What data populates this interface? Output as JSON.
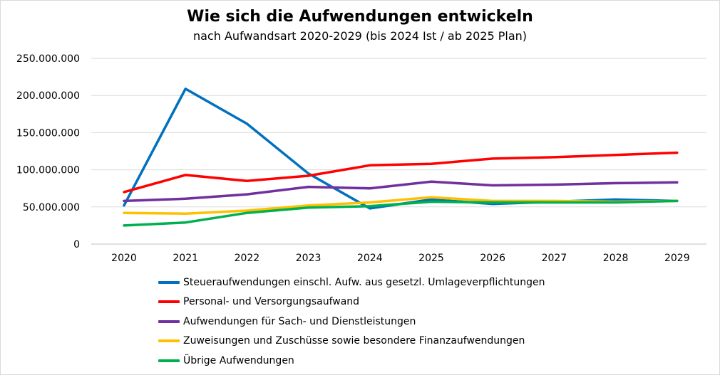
{
  "chart_data": {
    "type": "line",
    "title": "Wie sich die Aufwendungen entwickeln",
    "subtitle": "nach Aufwandsart 2020-2029 (bis 2024 Ist / ab 2025 Plan)",
    "x": [
      "2020",
      "2021",
      "2022",
      "2023",
      "2024",
      "2025",
      "2026",
      "2027",
      "2028",
      "2029"
    ],
    "ylim": [
      0,
      250000000
    ],
    "yticks": [
      0,
      50000000,
      100000000,
      150000000,
      200000000,
      250000000
    ],
    "ytick_labels": [
      "0",
      "50.000.000",
      "100.000.000",
      "150.000.000",
      "200.000.000",
      "250.000.000"
    ],
    "grid": true,
    "legend_position": "bottom",
    "series": [
      {
        "name": "Steueraufwendungen einschl. Aufw. aus gesetzl. Umlageverpflichtungen",
        "color": "#0070c0",
        "values": [
          52000000,
          209000000,
          162000000,
          95000000,
          48000000,
          60000000,
          54000000,
          57000000,
          60000000,
          58000000
        ]
      },
      {
        "name": "Personal- und Versorgungsaufwand",
        "color": "#ff0000",
        "values": [
          70000000,
          93000000,
          85000000,
          92000000,
          106000000,
          108000000,
          115000000,
          117000000,
          120000000,
          123000000
        ]
      },
      {
        "name": "Aufwendungen für Sach- und Dienstleistungen",
        "color": "#7030a0",
        "values": [
          58000000,
          61000000,
          67000000,
          77000000,
          75000000,
          84000000,
          79000000,
          80000000,
          82000000,
          83000000
        ]
      },
      {
        "name": "Zuweisungen und Zuschüsse sowie besondere Finanzaufwendungen",
        "color": "#ffc000",
        "values": [
          42000000,
          41000000,
          45000000,
          52000000,
          56000000,
          63000000,
          58000000,
          58000000,
          57000000,
          58000000
        ]
      },
      {
        "name": "Übrige Aufwendungen",
        "color": "#00b050",
        "values": [
          25000000,
          29000000,
          42000000,
          49000000,
          51000000,
          57000000,
          56000000,
          56000000,
          56000000,
          58000000
        ]
      }
    ]
  }
}
